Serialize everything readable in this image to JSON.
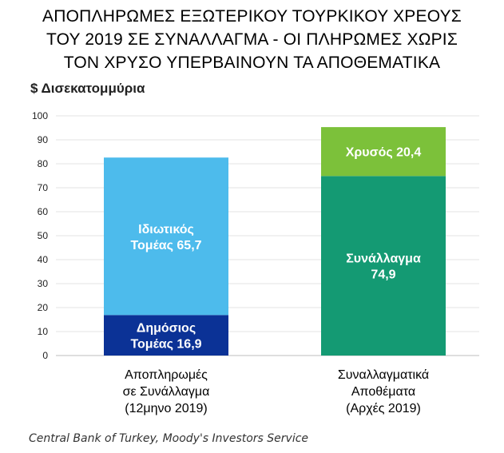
{
  "title_lines": [
    "ΑΠΟΠΛΗΡΩΜΕΣ ΕΞΩΤΕΡΙΚΟΥ ΤΟΥΡΚΙΚΟΥ ΧΡΕΟΥΣ",
    "ΤΟΥ 2019 ΣΕ ΣΥΝΑΛΛΑΓΜΑ - ΟΙ ΠΛΗΡΩΜΕΣ ΧΩΡΙΣ",
    "ΤΟΝ ΧΡΥΣΟ ΥΠΕΡΒΑΙΝΟΥΝ ΤΑ ΑΠΟΘΕΜΑΤΙΚΑ"
  ],
  "unit_label": "$ Δισεκατομμύρια",
  "source": "Central Bank of Turkey, Moody's Investors Service",
  "chart_data": {
    "type": "bar",
    "stacked": true,
    "ylim": [
      0,
      100
    ],
    "yticks": [
      0,
      10,
      20,
      30,
      40,
      50,
      60,
      70,
      80,
      90,
      100
    ],
    "grid": true,
    "bars": [
      {
        "category_lines": [
          "Αποπληρωμές",
          "σε Συνάλλαγμα",
          "(12μηνο 2019)"
        ],
        "segments": [
          {
            "label_lines": [
              "Δημόσιος",
              "Τομέας 16,9"
            ],
            "value": 16.9,
            "color": "#0b3296"
          },
          {
            "label_lines": [
              "Ιδιωτικός",
              "Τομέας 65,7"
            ],
            "value": 65.7,
            "color": "#4dbbec"
          }
        ]
      },
      {
        "category_lines": [
          "Συναλλαγματικά",
          "Αποθέματα",
          "(Αρχές 2019)"
        ],
        "segments": [
          {
            "label_lines": [
              "Συνάλλαγμα",
              "74,9"
            ],
            "value": 74.9,
            "color": "#149a73"
          },
          {
            "label_lines": [
              "Χρυσός 20,4"
            ],
            "value": 20.4,
            "color": "#7cc13a"
          }
        ]
      }
    ]
  }
}
